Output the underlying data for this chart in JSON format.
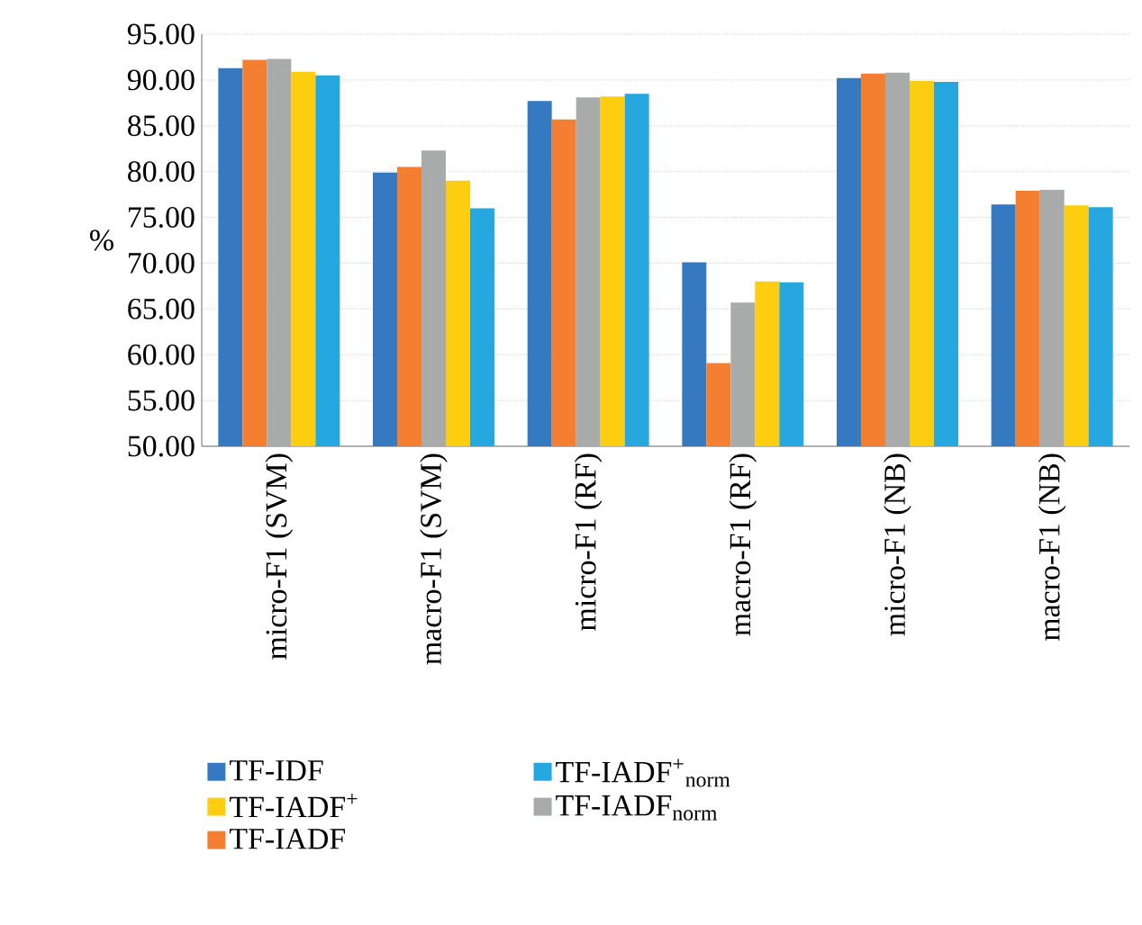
{
  "chart_data": {
    "type": "bar",
    "ylabel": "%",
    "categories": [
      "micro-F1 (SVM)",
      "macro-F1 (SVM)",
      "micro-F1 (RF)",
      "macro-F1 (RF)",
      "micro-F1 (NB)",
      "macro-F1 (NB)"
    ],
    "series": [
      {
        "name": "TF-IDF",
        "color": "#3579c0",
        "values": [
          91.3,
          79.9,
          87.7,
          70.1,
          90.2,
          76.4
        ]
      },
      {
        "name": "TF-IADF",
        "color": "#f47f30",
        "values": [
          92.2,
          80.5,
          85.7,
          59.1,
          90.7,
          77.9
        ]
      },
      {
        "name": "TF-IADF$_{norm}$",
        "color": "#a9abab",
        "values": [
          92.3,
          82.3,
          88.1,
          65.7,
          90.8,
          78.0
        ]
      },
      {
        "name": "TF-IADF$^{+}$",
        "color": "#fdcd0f",
        "values": [
          90.9,
          79.0,
          88.2,
          68.0,
          89.9,
          76.3
        ]
      },
      {
        "name": "TF-IADF$^{+}$$_{norm}$",
        "color": "#27a7df",
        "values": [
          90.5,
          76.0,
          88.5,
          67.9,
          89.8,
          76.1
        ]
      }
    ],
    "ylim": [
      50,
      95
    ],
    "yticks": [
      {
        "value": 50,
        "label": "50.00"
      },
      {
        "value": 55,
        "label": "55.00"
      },
      {
        "value": 60,
        "label": "60.00"
      },
      {
        "value": 65,
        "label": "65.00"
      },
      {
        "value": 70,
        "label": "70.00"
      },
      {
        "value": 75,
        "label": "75.00"
      },
      {
        "value": 80,
        "label": "80.00"
      },
      {
        "value": 85,
        "label": "85.00"
      },
      {
        "value": 90,
        "label": "90.00"
      },
      {
        "value": 95,
        "label": "95.00"
      }
    ],
    "grid": "y",
    "legend": "bottom"
  }
}
